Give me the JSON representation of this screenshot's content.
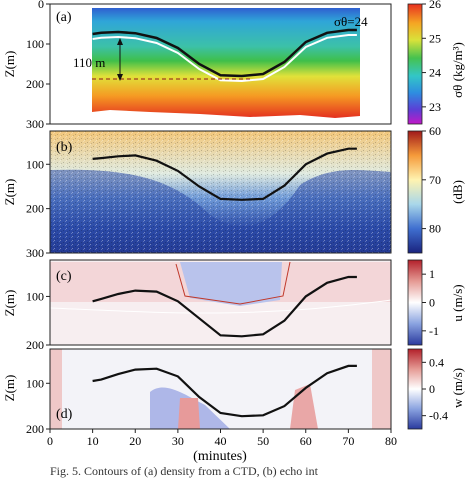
{
  "chart_data": [
    {
      "type": "heatmap",
      "panel_label": "(a)",
      "ylabel": "Z(m)",
      "yticks": [
        0,
        100,
        200,
        300
      ],
      "ylim": [
        300,
        0
      ],
      "xlim": [
        0,
        80
      ],
      "colorbar": {
        "label": "σθ (kg/m³)",
        "ticks": [
          23,
          24,
          25,
          26
        ],
        "range": [
          22.5,
          26
        ]
      },
      "annotations": {
        "isopycnal": "σθ=24",
        "depth_label": "110 m"
      },
      "contour_overlay": {
        "x": [
          10,
          12,
          16,
          20,
          25,
          30,
          35,
          40,
          45,
          50,
          55,
          60,
          65,
          70,
          72
        ],
        "y": [
          75,
          72,
          70,
          73,
          85,
          110,
          150,
          178,
          180,
          175,
          145,
          95,
          72,
          65,
          65
        ]
      }
    },
    {
      "type": "heatmap",
      "panel_label": "(b)",
      "ylabel": "Z(m)",
      "yticks": [
        100,
        200,
        300
      ],
      "ylim": [
        300,
        25
      ],
      "xlim": [
        0,
        80
      ],
      "colorbar": {
        "label": "(dB)",
        "ticks": [
          60,
          70,
          80
        ],
        "range": [
          85,
          60
        ]
      },
      "overlay_line": {
        "x": [
          10,
          12,
          16,
          20,
          25,
          30,
          35,
          40,
          45,
          50,
          55,
          60,
          65,
          70,
          72
        ],
        "y": [
          88,
          86,
          82,
          80,
          92,
          115,
          150,
          178,
          180,
          178,
          148,
          100,
          76,
          65,
          65
        ]
      }
    },
    {
      "type": "heatmap",
      "panel_label": "(c)",
      "ylabel": "Z(m)",
      "yticks": [
        100,
        200
      ],
      "ylim": [
        200,
        25
      ],
      "xlim": [
        0,
        80
      ],
      "colorbar": {
        "label": "u (m/s)",
        "ticks": [
          -1,
          0,
          1
        ],
        "range": [
          -1.5,
          1.5
        ]
      },
      "overlay_line": {
        "x": [
          10,
          12,
          16,
          20,
          25,
          30,
          35,
          40,
          45,
          50,
          55,
          60,
          65,
          70,
          72
        ],
        "y": [
          110,
          105,
          95,
          88,
          90,
          110,
          145,
          180,
          182,
          178,
          150,
          100,
          72,
          60,
          60
        ]
      }
    },
    {
      "type": "heatmap",
      "panel_label": "(d)",
      "ylabel": "Z(m)",
      "yticks": [
        100,
        200
      ],
      "ylim": [
        200,
        25
      ],
      "xlim": [
        0,
        80
      ],
      "xticks": [
        0,
        10,
        20,
        30,
        40,
        50,
        60,
        70,
        80
      ],
      "xlabel": "(minutes)",
      "colorbar": {
        "label": "w (m/s)",
        "ticks": [
          -0.4,
          0,
          0.4
        ],
        "range": [
          -0.6,
          0.6
        ]
      },
      "overlay_line": {
        "x": [
          10,
          12,
          16,
          20,
          25,
          30,
          35,
          40,
          45,
          50,
          55,
          60,
          65,
          70,
          72
        ],
        "y": [
          95,
          92,
          80,
          70,
          68,
          85,
          130,
          165,
          172,
          170,
          150,
          110,
          78,
          62,
          62
        ]
      }
    }
  ],
  "caption": "Fig. 5. Contours of (a) density from a CTD, (b) echo int"
}
